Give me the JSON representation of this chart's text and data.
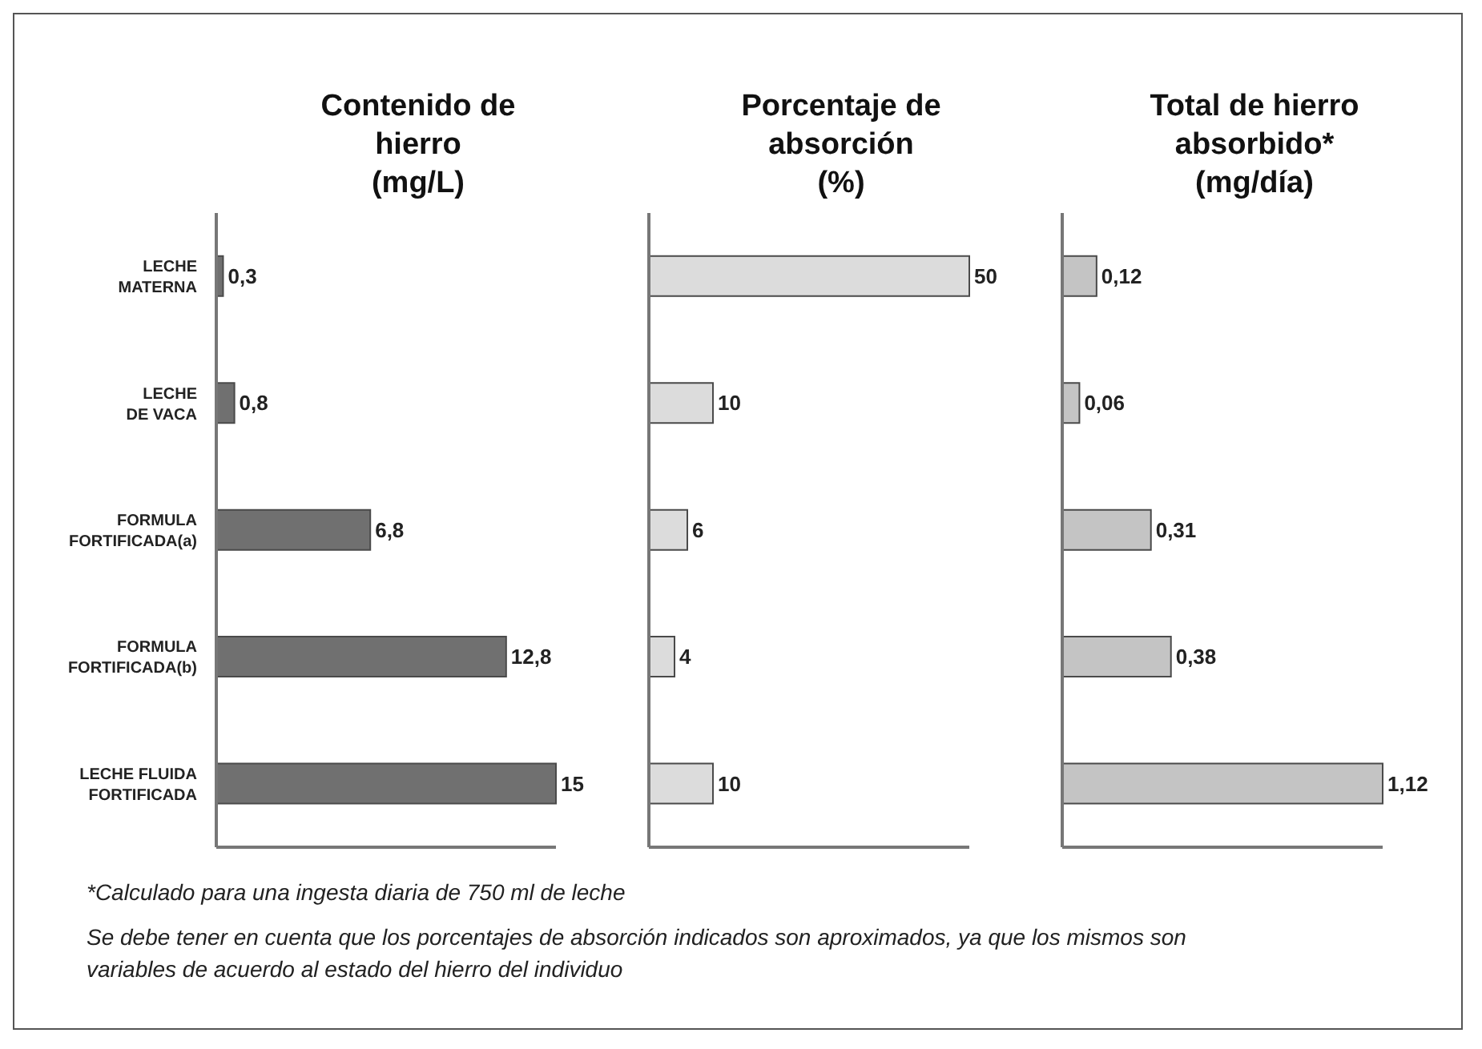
{
  "chart_data": [
    {
      "type": "bar",
      "orientation": "horizontal",
      "title": "Contenido de hierro (mg/L)",
      "categories": [
        "LECHE MATERNA",
        "LECHE DE VACA",
        "FORMULA FORTIFICADA(a)",
        "FORMULA FORTIFICADA(b)",
        "LECHE FLUIDA FORTIFICADA"
      ],
      "values": [
        0.3,
        0.8,
        6.8,
        12.8,
        15
      ],
      "value_labels": [
        "0,3",
        "0,8",
        "6,8",
        "12,8",
        "15"
      ],
      "color": "#707070",
      "tick_labels": "y",
      "annotations": [
        "*Calculado para una ingesta diaria de 750 ml de leche",
        "Se debe tener en cuenta que los porcentajes de absorción indicados son aproximados, ya que los mismos son variables de acuerdo al estado del hierro del individuo"
      ]
    },
    {
      "type": "bar",
      "orientation": "horizontal",
      "title": "Porcentaje de absorción (%)",
      "categories": [
        null,
        null,
        null,
        null,
        null
      ],
      "values": [
        50,
        10,
        6,
        4,
        10
      ],
      "value_labels": [
        "50",
        "10",
        "6",
        "4",
        "10"
      ],
      "color": "#dcdcdc",
      "tick_labels": false
    },
    {
      "type": "bar",
      "orientation": "horizontal",
      "title": "Total de hierro absorbido* (mg/día)",
      "categories": [
        null,
        null,
        null,
        null,
        null
      ],
      "values": [
        0.12,
        0.06,
        0.31,
        0.38,
        1.12
      ],
      "value_labels": [
        "0,12",
        "0,06",
        "0,31",
        "0,38",
        "1,12"
      ],
      "color": "#c4c4c4",
      "tick_labels": false
    }
  ]
}
